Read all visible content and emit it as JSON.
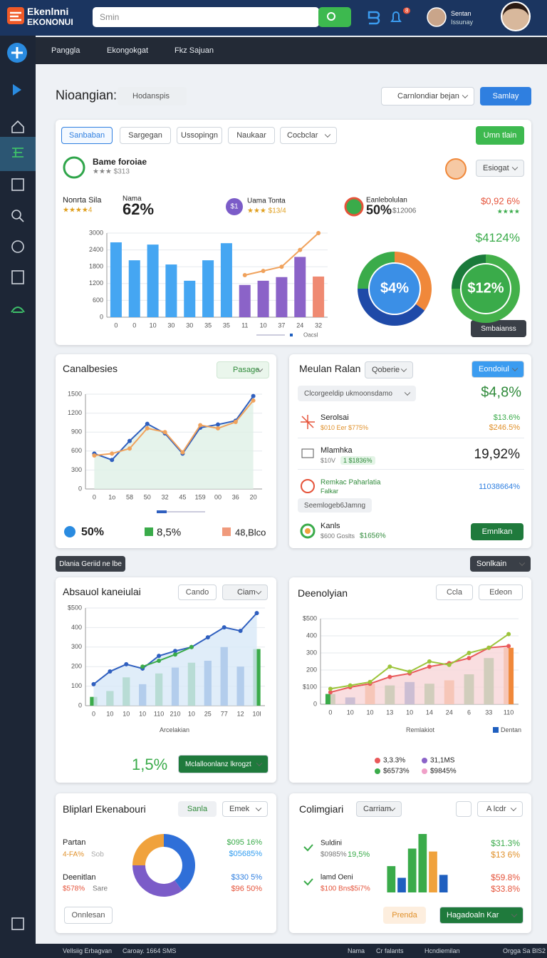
{
  "topbar": {
    "logo_line1": "Ekenlnni",
    "logo_line2": "EKONONUI",
    "search_placeholder": "Smin",
    "notification_count": "8",
    "user_name": "Sentan",
    "user_role": "Issunay"
  },
  "subnav": {
    "items": [
      "Panggla",
      "Ekongokgat",
      "Fkz Sajuan"
    ]
  },
  "header": {
    "title": "Nioangian:",
    "filter": "Hodanspis",
    "select": "Carnlondiar bejan",
    "button": "Samlay"
  },
  "overview": {
    "tabs": [
      "Sanbaban",
      "Sargegan",
      "Ussopingn",
      "Naukaar"
    ],
    "tab_select": "Cocbclar",
    "action": "Umn tlain",
    "profile_name": "Bame foroiae",
    "profile_meta": "★★★ $313",
    "dropdown": "Esiogat",
    "kpis": [
      {
        "label": "Nonrta Sila",
        "meta": "★★★★4"
      },
      {
        "label": "Nama",
        "value": "62%"
      },
      {
        "badge": "$1",
        "label": "Uama Tonta",
        "meta": "★★★ $13/4"
      },
      {
        "label": "Eanlebolulan",
        "value": "50%",
        "meta": "$12006"
      },
      {
        "label": "$0,92 6%",
        "meta": "★★★★"
      }
    ],
    "bar_chart": {
      "type": "bar",
      "categories": [
        "0",
        "0",
        "10",
        "30",
        "30",
        "35",
        "35",
        "11",
        "10",
        "37",
        "24",
        "32"
      ],
      "bars": {
        "values": [
          2670,
          2030,
          2590,
          1880,
          1300,
          2030,
          2640,
          1150,
          1300,
          1430,
          2150,
          1450
        ],
        "colors": [
          "#45a6f2",
          "#45a6f2",
          "#45a6f2",
          "#45a6f2",
          "#45a6f2",
          "#45a6f2",
          "#45a6f2",
          "#8b63c8",
          "#8b63c8",
          "#8b63c8",
          "#8b63c8",
          "#ef8a72"
        ]
      },
      "lines": [
        {
          "color": "#f0a25c",
          "values": [
            null,
            null,
            null,
            null,
            null,
            null,
            null,
            1500,
            1650,
            1800,
            2400,
            3000
          ]
        }
      ],
      "ylim": [
        0,
        3000
      ],
      "yticks": [
        0,
        600,
        1200,
        1800,
        2400,
        3000
      ],
      "legend": "Oacsl"
    },
    "donuts": [
      {
        "type": "pie",
        "label": "$4%",
        "values": [
          35,
          40,
          25
        ],
        "colors": [
          "#f0883a",
          "#1f4aa8",
          "#3aab4a"
        ],
        "inner": "#3b8fe6"
      },
      {
        "type": "pie",
        "label": "$12%",
        "values": [
          75,
          25
        ],
        "colors": [
          "#43b04a",
          "#1a7a3a"
        ],
        "inner": "#3aab4a"
      }
    ],
    "donut_caption": "$4124%",
    "button": "Smbaianss"
  },
  "trend": {
    "title": "Canalbesies",
    "dropdown": "Pasage",
    "chart": {
      "type": "line",
      "categories": [
        "0",
        "1o",
        "58",
        "50",
        "32",
        "45",
        "159",
        "00",
        "36",
        "20"
      ],
      "lines": [
        {
          "color": "#2f5fbf",
          "values": [
            560,
            460,
            760,
            1030,
            880,
            560,
            970,
            1020,
            1080,
            1470
          ],
          "area": true,
          "area_color": "#dff0e6"
        },
        {
          "color": "#f0a25c",
          "values": [
            530,
            560,
            640,
            960,
            900,
            580,
            1010,
            960,
            1060,
            1400
          ]
        }
      ],
      "ylim": [
        0,
        1500
      ],
      "yticks": [
        0,
        300,
        600,
        900,
        1200,
        1500
      ]
    },
    "legend": [
      "50%",
      "8,5%",
      "48,Blco"
    ]
  },
  "list": {
    "title": "Meulan Ralan",
    "dropdown": "Qoberie",
    "button": "Eondoiul",
    "search": "Clcorgeeldip ukmoonsdamo",
    "total": "$4,8%",
    "items": [
      {
        "title": "Serolsai",
        "sub": "$010 Eer $775%",
        "value": "$13.6%",
        "value2": "$246.5%"
      },
      {
        "title": "Mlamhka",
        "sub": "$10V",
        "tag": "1 $1836%",
        "value": "19,92%"
      },
      {
        "title": "Remkac Paharlatia",
        "sub": "Falkar",
        "value": "11038664%"
      },
      {
        "title": "Kanls",
        "sub": "$600 Goslts",
        "tag": "$1656%"
      }
    ],
    "pill": "Seemlogeb6Jamng",
    "action": "Emnlkan"
  },
  "toolbar": {
    "left": "Dlania Geriid ne lbe",
    "right": "Sonlkain"
  },
  "combo1": {
    "title": "Absauol kaneiulai",
    "buttons": [
      "Cando",
      "Ciam"
    ],
    "chart": {
      "type": "bar",
      "categories": [
        "0",
        "10",
        "10",
        "10",
        "110",
        "210",
        "10",
        "25",
        "77",
        "12",
        "10l"
      ],
      "bars": {
        "values": [
          45,
          75,
          145,
          110,
          165,
          195,
          220,
          230,
          300,
          200,
          290
        ],
        "colors": [
          "#3aab4a",
          "#3aab4a",
          "#3aab4a",
          "#1f5fbf",
          "#3aab4a",
          "#1f5fbf",
          "#3aab4a",
          "#1f5fbf",
          "#1f5fbf",
          "#1f5fbf",
          "#3aab4a"
        ]
      },
      "lines": [
        {
          "color": "#2f5fbf",
          "values": [
            110,
            175,
            212,
            190,
            255,
            280,
            300,
            350,
            401,
            383,
            474
          ],
          "area": true,
          "area_color": "#d8e8f8"
        },
        {
          "color": "#3aab4a",
          "values": [
            null,
            null,
            null,
            200,
            230,
            262,
            300,
            null,
            null,
            null,
            null
          ]
        }
      ],
      "ylim": [
        0,
        500
      ],
      "yticks": [
        0,
        100,
        200,
        300,
        400,
        {
          "value": 500,
          "label": "$500"
        }
      ]
    },
    "x_label": "Arcelakian",
    "kpi": "1,5%",
    "button": "Mclalloonlanz lkrogzt"
  },
  "combo2": {
    "title": "Deenolyian",
    "buttons": [
      "Ccla",
      "Edeon"
    ],
    "chart": {
      "type": "bar",
      "categories": [
        "0",
        "10",
        "10",
        "13",
        "10",
        "14",
        "24",
        "6",
        "33",
        "110"
      ],
      "bars": {
        "values": [
          60,
          40,
          120,
          110,
          130,
          120,
          140,
          175,
          270,
          330
        ],
        "colors": [
          "#3aab4a",
          "#1f5fbf",
          "#f0883a",
          "#3aab4a",
          "#1f5fbf",
          "#3aab4a",
          "#f0883a",
          "#3aab4a",
          "#3aab4a",
          "#f0883a"
        ]
      },
      "lines": [
        {
          "color": "#e9595a",
          "values": [
            70,
            100,
            120,
            160,
            180,
            220,
            240,
            270,
            330,
            340
          ],
          "area": true,
          "area_color": "#f8d6d8"
        },
        {
          "color": "#9cc43a",
          "values": [
            90,
            110,
            130,
            220,
            190,
            250,
            230,
            300,
            330,
            410
          ]
        }
      ],
      "ylim": [
        0,
        500
      ],
      "yticks": [
        0,
        {
          "value": 100,
          "label": "$100"
        },
        200,
        300,
        400,
        {
          "value": 500,
          "label": "$500"
        }
      ]
    },
    "x_label": "Remlakiot",
    "legend_label": "Dentan",
    "legend": [
      {
        "label": "3,3.3%",
        "color": "#e9595a"
      },
      {
        "label": "31,1MS",
        "color": "#8b63c8"
      },
      {
        "label": "$6573%",
        "color": "#3aab4a"
      },
      {
        "label": "$9845%",
        "color": "#f0a0c8"
      }
    ]
  },
  "split": {
    "title": "Bliplarl Ekenabouri",
    "button": "Sanla",
    "dropdown": "Emek",
    "rows": [
      {
        "label": "Partan",
        "value": "4-FA%",
        "note": "Sob"
      },
      {
        "label": "Deenitlan",
        "value": "$578%",
        "note": "Sare"
      }
    ],
    "right": [
      "$095 16%",
      "$05685%",
      "$330 5%",
      "$96 50%"
    ],
    "donut": {
      "type": "pie",
      "values": [
        40,
        35,
        25
      ],
      "colors": [
        "#2f6fd8",
        "#7b5cc8",
        "#f0a23c"
      ]
    },
    "action": "Onnlesan"
  },
  "columns": {
    "title": "Colimgiari",
    "dropdown": "Carriam",
    "select": "A lcdr",
    "rows": [
      {
        "label": "Suldini",
        "sub": "$0985%",
        "tag": "19,5%"
      },
      {
        "label": "lamd Oeni",
        "sub": "$100 Bns",
        "tag": "$5i7%"
      }
    ],
    "right": [
      "$31.3%",
      "$13 6%",
      "$59.8%",
      "$33.8%"
    ],
    "chart": {
      "type": "bar",
      "bars": {
        "values": [
          45,
          25,
          75,
          100,
          70,
          30
        ],
        "colors": [
          "#3aab4a",
          "#1f5fbf",
          "#3aab4a",
          "#3aab4a",
          "#f0a23c",
          "#1f5fbf"
        ]
      },
      "ylim": [
        0,
        100
      ]
    },
    "buttons": [
      "Prenda",
      "Hagadoaln Kar"
    ]
  },
  "footer": {
    "items": [
      "Vellsiig Erbagvan",
      "Caroay. 1664 SMS",
      "Nama",
      "Cr falants",
      "Hcndiemilan",
      "Orgga Sa BlS2"
    ]
  }
}
